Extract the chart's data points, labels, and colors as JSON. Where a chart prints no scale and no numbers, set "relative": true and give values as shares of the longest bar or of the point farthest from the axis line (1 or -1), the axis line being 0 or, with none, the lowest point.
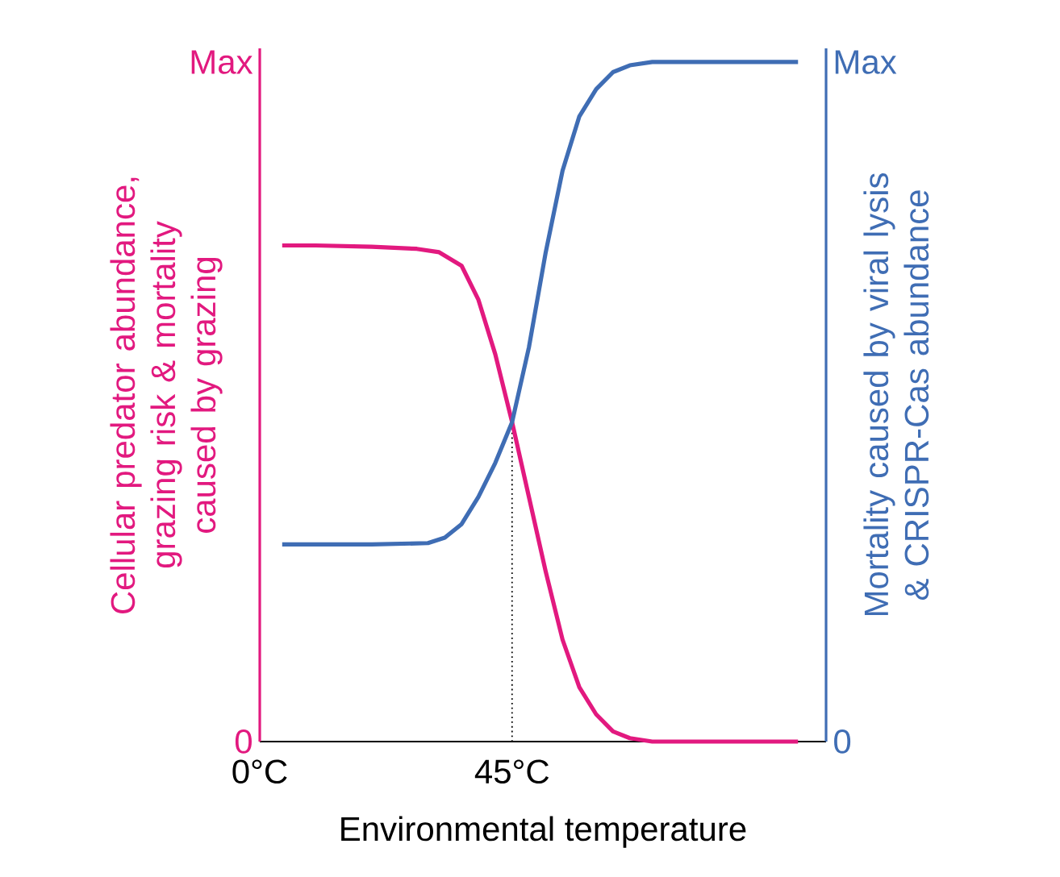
{
  "chart_data": {
    "type": "line",
    "relative": true,
    "xlabel": "Environmental temperature",
    "ylabel": "Cellular predator abundance, grazing risk & mortality caused by grazing",
    "y2label": "Mortality caused by viral lysis & CRISPR-Cas abundance",
    "xlim": [
      0,
      101
    ],
    "xticks": [
      {
        "value": 0,
        "label": "0°C"
      },
      {
        "value": 45,
        "label": "45°C"
      }
    ],
    "annotations": [
      "0",
      "Max",
      "0",
      "Max"
    ],
    "line_style": "solid",
    "marker": "none",
    "ref_lines": [
      {
        "axis": "x",
        "value": 45,
        "line_style": "dotted",
        "color": "#000000"
      }
    ],
    "series": [
      {
        "color": "#e2197f",
        "x": [
          4,
          10,
          20,
          28,
          32,
          36,
          39,
          42,
          45,
          48,
          51,
          54,
          57,
          60,
          63,
          66,
          70,
          80,
          96
        ],
        "values": [
          0.73,
          0.73,
          0.728,
          0.725,
          0.72,
          0.7,
          0.65,
          0.57,
          0.47,
          0.36,
          0.25,
          0.15,
          0.08,
          0.04,
          0.015,
          0.005,
          0,
          0,
          0
        ]
      },
      {
        "color": "#3f6db4",
        "axis": "y2",
        "x": [
          4,
          10,
          20,
          30,
          33,
          36,
          39,
          42,
          45,
          48,
          51,
          54,
          57,
          60,
          63,
          66,
          70,
          80,
          96
        ],
        "values": [
          0.29,
          0.29,
          0.29,
          0.292,
          0.3,
          0.32,
          0.36,
          0.41,
          0.47,
          0.58,
          0.72,
          0.84,
          0.92,
          0.96,
          0.985,
          0.995,
          1,
          1,
          1
        ]
      }
    ]
  }
}
